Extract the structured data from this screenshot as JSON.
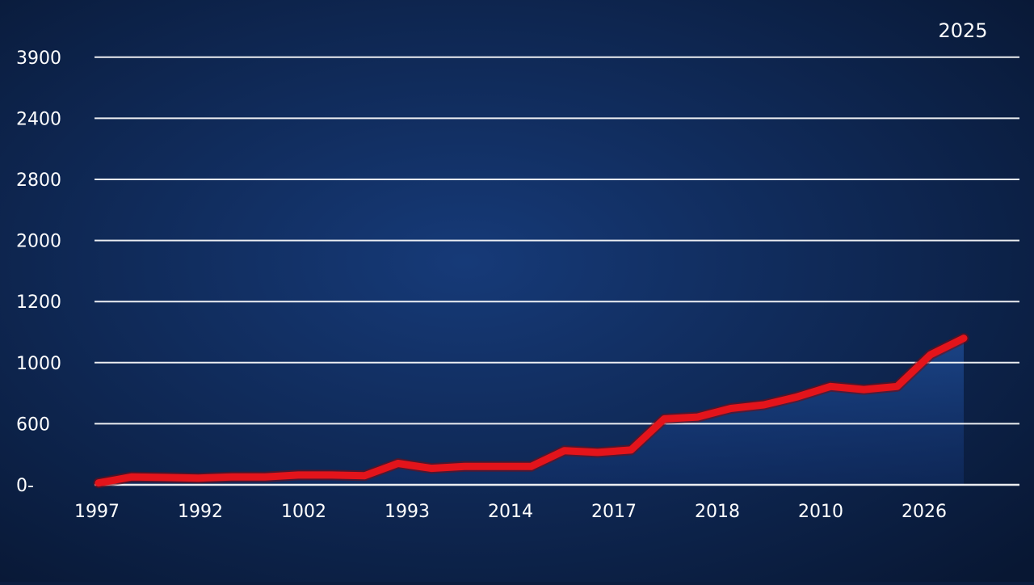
{
  "chart_data": {
    "type": "line",
    "title": "",
    "xlabel": "",
    "ylabel": "",
    "x_tick_labels": [
      "1997",
      "1992",
      "1002",
      "1993",
      "2014",
      "2017",
      "2018",
      "2010",
      "2026"
    ],
    "y_tick_labels": [
      "0-",
      "600",
      "1000",
      "1200",
      "2000",
      "2800",
      "2400",
      "3900"
    ],
    "grid": true,
    "legend": "none",
    "annotation": "2025",
    "series": [
      {
        "values": [
          0.03,
          0.13,
          0.12,
          0.11,
          0.13,
          0.13,
          0.16,
          0.16,
          0.15,
          0.35,
          0.27,
          0.3,
          0.3,
          0.3,
          0.56,
          0.53,
          0.57,
          1.08,
          1.11,
          1.25,
          1.31,
          1.44,
          1.61,
          1.56,
          1.61,
          2.13,
          2.4
        ],
        "color": "#e3141b"
      }
    ],
    "ylim": [
      0,
      7
    ],
    "colors": {
      "background": "#0b1d3f",
      "grid": "#ffffff",
      "line": "#e3141b",
      "text": "#ffffff"
    }
  }
}
